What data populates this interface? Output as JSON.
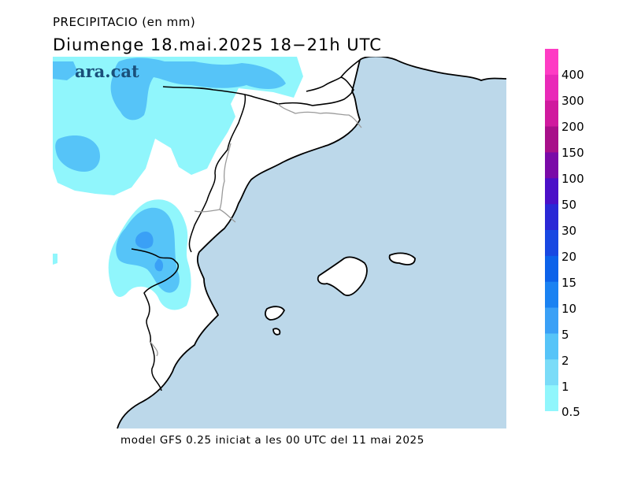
{
  "header": {
    "title_small": "PRECIPITACIO (en mm)",
    "title_big": "Diumenge  18.mai.2025  18−21h UTC"
  },
  "watermark": {
    "text": "ara.cat"
  },
  "footer": {
    "text": "model GFS 0.25 iniciat a les 00 UTC del 11 mai 2025"
  },
  "legend": {
    "unit": "mm",
    "levels": [
      "400",
      "300",
      "200",
      "150",
      "100",
      "50",
      "30",
      "20",
      "15",
      "10",
      "5",
      "2",
      "1",
      "0.5"
    ],
    "colors": [
      "#fe3cc4",
      "#e92ab8",
      "#d01a9e",
      "#a8108a",
      "#7a0aa8",
      "#4b10c8",
      "#2a28d6",
      "#1848e2",
      "#0c62ea",
      "#1a82f2",
      "#3aa0f6",
      "#56c4f8",
      "#7adcf8",
      "#90f6fc"
    ]
  },
  "map": {
    "sea_color": "#bcd8ea",
    "land_color": "#ffffff",
    "precip_colors": {
      "light": "#90f6fc",
      "medium": "#56c4f8",
      "heavy": "#3aa0f6"
    }
  }
}
